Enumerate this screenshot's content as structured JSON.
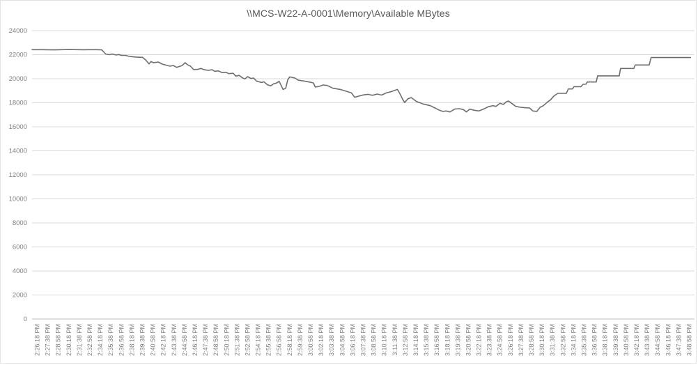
{
  "chart_data": {
    "type": "line",
    "title": "\\\\MCS-W22-A-0001\\Memory\\Available MBytes",
    "xlabel": "",
    "ylabel": "",
    "ylim": [
      0,
      24000
    ],
    "ytick_interval": 2000,
    "yticks": [
      0,
      2000,
      4000,
      6000,
      8000,
      10000,
      12000,
      14000,
      16000,
      18000,
      20000,
      22000,
      24000
    ],
    "grid": "horizontal",
    "legend": "none",
    "x_tick_interval_seconds": 80,
    "x_axis_duration_seconds": 5040,
    "x_tick_labels": [
      "2:26:18 PM",
      "2:27:38 PM",
      "2:28:58 PM",
      "2:30:18 PM",
      "2:31:38 PM",
      "2:32:58 PM",
      "2:34:18 PM",
      "2:35:38 PM",
      "2:36:58 PM",
      "2:38:18 PM",
      "2:39:38 PM",
      "2:40:58 PM",
      "2:42:18 PM",
      "2:43:38 PM",
      "2:44:58 PM",
      "2:46:18 PM",
      "2:47:38 PM",
      "2:48:58 PM",
      "2:50:18 PM",
      "2:51:38 PM",
      "2:52:58 PM",
      "2:54:18 PM",
      "2:55:38 PM",
      "2:56:58 PM",
      "2:58:18 PM",
      "2:59:38 PM",
      "3:00:58 PM",
      "3:02:18 PM",
      "3:03:38 PM",
      "3:04:58 PM",
      "3:06:18 PM",
      "3:07:38 PM",
      "3:08:58 PM",
      "3:10:18 PM",
      "3:11:38 PM",
      "3:12:58 PM",
      "3:14:18 PM",
      "3:15:38 PM",
      "3:16:58 PM",
      "3:18:18 PM",
      "3:19:38 PM",
      "3:20:58 PM",
      "3:22:18 PM",
      "3:23:38 PM",
      "3:24:58 PM",
      "3:26:18 PM",
      "3:27:38 PM",
      "3:28:58 PM",
      "3:30:18 PM",
      "3:31:38 PM",
      "3:32:58 PM",
      "3:34:18 PM",
      "3:35:38 PM",
      "3:36:58 PM",
      "3:38:18 PM",
      "3:39:38 PM",
      "3:40:58 PM",
      "3:42:18 PM",
      "3:43:38 PM",
      "3:44:58 PM",
      "3:46:18 PM",
      "3:47:38 PM",
      "3:48:58 PM"
    ],
    "series": [
      {
        "name": "Available MBytes",
        "points_t_seconds_v_mbytes": [
          [
            0,
            22420
          ],
          [
            70,
            22420
          ],
          [
            170,
            22400
          ],
          [
            280,
            22430
          ],
          [
            390,
            22410
          ],
          [
            490,
            22420
          ],
          [
            530,
            22400
          ],
          [
            560,
            22060
          ],
          [
            590,
            22000
          ],
          [
            610,
            22060
          ],
          [
            640,
            21970
          ],
          [
            660,
            22010
          ],
          [
            680,
            21940
          ],
          [
            710,
            21940
          ],
          [
            740,
            21860
          ],
          [
            790,
            21800
          ],
          [
            840,
            21780
          ],
          [
            865,
            21560
          ],
          [
            890,
            21235
          ],
          [
            905,
            21430
          ],
          [
            925,
            21330
          ],
          [
            960,
            21390
          ],
          [
            990,
            21215
          ],
          [
            1050,
            21045
          ],
          [
            1075,
            21100
          ],
          [
            1100,
            20945
          ],
          [
            1140,
            21085
          ],
          [
            1165,
            21335
          ],
          [
            1185,
            21150
          ],
          [
            1205,
            21045
          ],
          [
            1230,
            20760
          ],
          [
            1265,
            20790
          ],
          [
            1285,
            20855
          ],
          [
            1310,
            20750
          ],
          [
            1340,
            20700
          ],
          [
            1370,
            20740
          ],
          [
            1390,
            20620
          ],
          [
            1420,
            20650
          ],
          [
            1445,
            20505
          ],
          [
            1475,
            20540
          ],
          [
            1495,
            20425
          ],
          [
            1530,
            20450
          ],
          [
            1550,
            20215
          ],
          [
            1575,
            20280
          ],
          [
            1600,
            20075
          ],
          [
            1620,
            19980
          ],
          [
            1640,
            20175
          ],
          [
            1665,
            20015
          ],
          [
            1685,
            20060
          ],
          [
            1710,
            19785
          ],
          [
            1745,
            19690
          ],
          [
            1765,
            19740
          ],
          [
            1790,
            19500
          ],
          [
            1815,
            19400
          ],
          [
            1840,
            19590
          ],
          [
            1860,
            19640
          ],
          [
            1880,
            19785
          ],
          [
            1910,
            19110
          ],
          [
            1930,
            19200
          ],
          [
            1945,
            19900
          ],
          [
            1960,
            20150
          ],
          [
            2000,
            20060
          ],
          [
            2025,
            19880
          ],
          [
            2080,
            19785
          ],
          [
            2120,
            19700
          ],
          [
            2140,
            19650
          ],
          [
            2155,
            19305
          ],
          [
            2185,
            19365
          ],
          [
            2215,
            19480
          ],
          [
            2245,
            19440
          ],
          [
            2290,
            19205
          ],
          [
            2345,
            19110
          ],
          [
            2380,
            18990
          ],
          [
            2410,
            18890
          ],
          [
            2430,
            18820
          ],
          [
            2455,
            18450
          ],
          [
            2485,
            18550
          ],
          [
            2520,
            18650
          ],
          [
            2555,
            18700
          ],
          [
            2590,
            18620
          ],
          [
            2625,
            18725
          ],
          [
            2660,
            18640
          ],
          [
            2695,
            18820
          ],
          [
            2730,
            18915
          ],
          [
            2765,
            19050
          ],
          [
            2780,
            19110
          ],
          [
            2800,
            18725
          ],
          [
            2820,
            18280
          ],
          [
            2835,
            18015
          ],
          [
            2860,
            18335
          ],
          [
            2885,
            18430
          ],
          [
            2925,
            18100
          ],
          [
            2975,
            17895
          ],
          [
            3030,
            17755
          ],
          [
            3055,
            17625
          ],
          [
            3100,
            17375
          ],
          [
            3125,
            17275
          ],
          [
            3150,
            17315
          ],
          [
            3180,
            17235
          ],
          [
            3215,
            17470
          ],
          [
            3250,
            17510
          ],
          [
            3280,
            17435
          ],
          [
            3305,
            17235
          ],
          [
            3330,
            17470
          ],
          [
            3365,
            17375
          ],
          [
            3400,
            17315
          ],
          [
            3435,
            17470
          ],
          [
            3470,
            17665
          ],
          [
            3505,
            17755
          ],
          [
            3530,
            17700
          ],
          [
            3560,
            17955
          ],
          [
            3585,
            17860
          ],
          [
            3610,
            18090
          ],
          [
            3625,
            18145
          ],
          [
            3655,
            17895
          ],
          [
            3680,
            17700
          ],
          [
            3715,
            17625
          ],
          [
            3755,
            17585
          ],
          [
            3785,
            17565
          ],
          [
            3810,
            17315
          ],
          [
            3840,
            17275
          ],
          [
            3865,
            17625
          ],
          [
            3890,
            17755
          ],
          [
            3920,
            18045
          ],
          [
            3945,
            18250
          ],
          [
            3970,
            18565
          ],
          [
            4000,
            18780
          ],
          [
            4065,
            18780
          ],
          [
            4080,
            19145
          ],
          [
            4112,
            19145
          ],
          [
            4123,
            19340
          ],
          [
            4176,
            19340
          ],
          [
            4192,
            19535
          ],
          [
            4213,
            19535
          ],
          [
            4224,
            19725
          ],
          [
            4292,
            19725
          ],
          [
            4303,
            20240
          ],
          [
            4467,
            20240
          ],
          [
            4477,
            20850
          ],
          [
            4578,
            20850
          ],
          [
            4589,
            21140
          ],
          [
            4695,
            21140
          ],
          [
            4710,
            21760
          ],
          [
            5010,
            21760
          ]
        ]
      }
    ],
    "colors": {
      "line": "#6e6e6e",
      "grid": "#d9d9d9",
      "axis": "#bfbfbf",
      "title": "#595959",
      "tick_text": "#7f7f7f",
      "background": "#ffffff",
      "frame_border": "#e3e3e3"
    }
  }
}
